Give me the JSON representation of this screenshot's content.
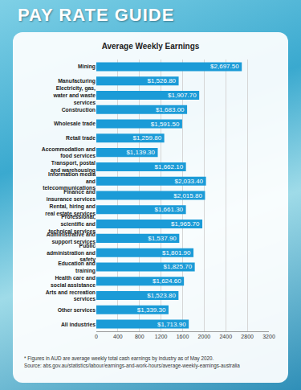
{
  "header": "PAY RATE GUIDE",
  "footnotes": [
    "* Figures in AUD are average weekly total cash earnings by industry as of May 2020.",
    "Source: abs.gov.au/statistics/labour/earnings-and-work-hours/average-weekly-earnings-australia"
  ],
  "chart_data": {
    "type": "bar",
    "orientation": "horizontal",
    "title": "Average Weekly Earnings",
    "categories": [
      "Mining",
      "Manufacturing",
      "Electricity, gas, water and waste services",
      "Construction",
      "Wholesale trade",
      "Retail trade",
      "Accommodation and food services",
      "Transport, postal and warehousing",
      "Information media and telecommunications",
      "Finance and insurance services",
      "Rental, hiring and real estate services",
      "Professional, scientific and technical services",
      "Administrative and support services",
      "Public administration and safety",
      "Education and training",
      "Health care and social assistance",
      "Arts and recreation services",
      "Other services",
      "All industries"
    ],
    "values": [
      2697.5,
      1526.8,
      1907.7,
      1683.0,
      1591.5,
      1259.8,
      1139.3,
      1662.1,
      2033.4,
      2015.8,
      1661.3,
      1965.7,
      1537.9,
      1801.9,
      1825.7,
      1624.6,
      1523.8,
      1339.3,
      1713.9
    ],
    "value_labels": [
      "$2,697.50",
      "$1,526.80",
      "$1,907.70",
      "$1,683.00",
      "$1,591.50",
      "$1,259.80",
      "$1,139.30",
      "$1,662.10",
      "$2,033.40",
      "$2,015.80",
      "$1,661.30",
      "$1,965.70",
      "$1,537.90",
      "$1,801.90",
      "$1,825.70",
      "$1,624.60",
      "$1,523.80",
      "$1,339.30",
      "$1,713.90"
    ],
    "data_labels": true,
    "color": "#1b9bd7",
    "xlim": [
      0,
      3200
    ],
    "xticks": [
      0,
      400,
      800,
      1200,
      1600,
      2000,
      2400,
      2800,
      3200
    ],
    "grid": true
  }
}
